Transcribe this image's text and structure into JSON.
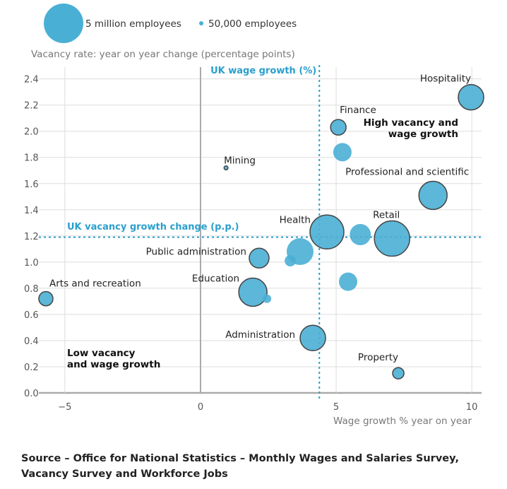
{
  "chart_data": {
    "type": "scatter",
    "subtype": "bubble",
    "ylabel": "Vacancy rate: year on year change (percentage points)",
    "xlabel": "Wage growth % year on year",
    "xlim": [
      -5.96,
      10.36
    ],
    "ylim": [
      0,
      2.49
    ],
    "xticks": [
      -5,
      0,
      5,
      10
    ],
    "xtick_labels": [
      "−5",
      "0",
      "5",
      "10"
    ],
    "yticks": [
      0,
      0.2,
      0.4,
      0.6,
      0.8,
      1.0,
      1.2,
      1.4,
      1.6,
      1.8,
      2.0,
      2.2,
      2.4
    ],
    "ytick_labels": [
      "0.0",
      "0.2",
      "0.4",
      "0.6",
      "0.8",
      "1.0",
      "1.2",
      "1.4",
      "1.6",
      "1.8",
      "2.0",
      "2.2",
      "2.4"
    ],
    "grid": true,
    "bubble_color": "#4AAFD5",
    "reference_color": "#2A9FCC",
    "size_legend": [
      {
        "label": "5 million employees",
        "employees": 5000000
      },
      {
        "label": "50,000 employees",
        "employees": 50000
      }
    ],
    "reference_lines": {
      "wage": {
        "label": "UK wage growth (%)",
        "x": 4.38
      },
      "vacancy": {
        "label": "UK vacancy growth change (p.p.)",
        "y": 1.19
      }
    },
    "quadrant_labels": {
      "high": "High vacancy and wage growth",
      "low": "Low vacancy and wage growth"
    },
    "points": [
      {
        "label": "Hospitality",
        "x": 9.97,
        "y": 2.26,
        "employees_m": 2.07,
        "outlined": true
      },
      {
        "label": "Finance",
        "x": 5.08,
        "y": 2.03,
        "employees_m": 0.77,
        "outlined": true
      },
      {
        "label": "",
        "x": 5.23,
        "y": 1.84,
        "employees_m": 1.08,
        "outlined": false
      },
      {
        "label": "Mining",
        "x": 0.94,
        "y": 1.72,
        "employees_m": 0.05,
        "outlined": true
      },
      {
        "label": "Professional and scientific",
        "x": 8.57,
        "y": 1.51,
        "employees_m": 2.55,
        "outlined": true
      },
      {
        "label": "Health",
        "x": 4.66,
        "y": 1.23,
        "employees_m": 3.67,
        "outlined": true
      },
      {
        "label": "",
        "x": 5.89,
        "y": 1.21,
        "employees_m": 1.43,
        "outlined": false
      },
      {
        "label": "Retail",
        "x": 7.06,
        "y": 1.18,
        "employees_m": 3.99,
        "outlined": true
      },
      {
        "label": "",
        "x": 3.67,
        "y": 1.08,
        "employees_m": 2.3,
        "outlined": false
      },
      {
        "label": "Public administration",
        "x": 2.16,
        "y": 1.03,
        "employees_m": 1.25,
        "outlined": true
      },
      {
        "label": "",
        "x": 3.31,
        "y": 1.01,
        "employees_m": 0.41,
        "outlined": false
      },
      {
        "label": "Arts and recreation",
        "x": -5.7,
        "y": 0.72,
        "employees_m": 0.64,
        "outlined": true
      },
      {
        "label": "Education",
        "x": 1.93,
        "y": 0.77,
        "employees_m": 2.55,
        "outlined": true
      },
      {
        "label": "",
        "x": 2.45,
        "y": 0.72,
        "employees_m": 0.23,
        "outlined": false
      },
      {
        "label": "",
        "x": 5.44,
        "y": 0.85,
        "employees_m": 1.08,
        "outlined": false
      },
      {
        "label": "Administration",
        "x": 4.14,
        "y": 0.42,
        "employees_m": 2.07,
        "outlined": true
      },
      {
        "label": "Property",
        "x": 7.29,
        "y": 0.15,
        "employees_m": 0.41,
        "outlined": true
      }
    ]
  },
  "source": "Source – Office for National Statistics – Monthly Wages and Salaries Survey, Vacancy Survey and Workforce Jobs"
}
